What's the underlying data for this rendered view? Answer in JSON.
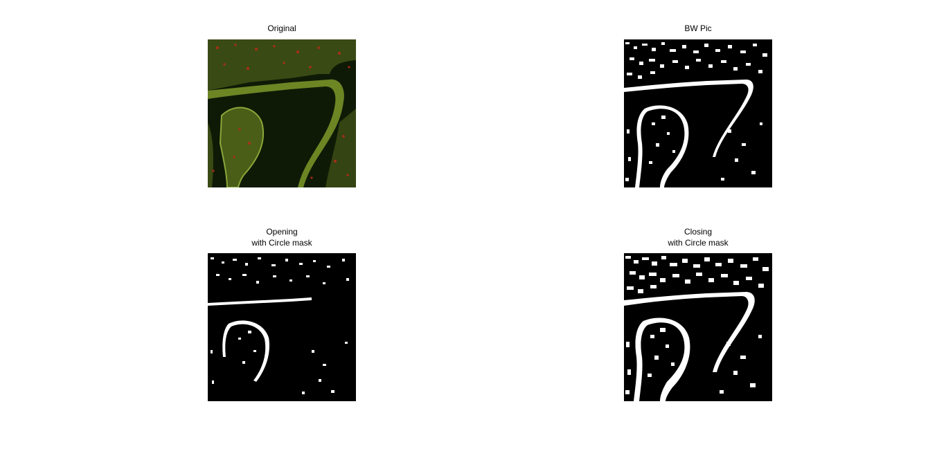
{
  "figure": {
    "background": "#ffffff",
    "panels": [
      {
        "id": "original",
        "title_lines": [
          "Original"
        ],
        "style": "color"
      },
      {
        "id": "bw",
        "title_lines": [
          "BW Pic"
        ],
        "style": "bw"
      },
      {
        "id": "opening",
        "title_lines": [
          "Opening",
          "with Circle mask"
        ],
        "style": "bw-sparse"
      },
      {
        "id": "closing",
        "title_lines": [
          "Closing",
          "with Circle mask"
        ],
        "style": "bw-dense"
      }
    ]
  },
  "colors": {
    "tissue_dark": "#0e1a06",
    "tissue_green": "#7f9a2a",
    "tissue_red": "#c0281a",
    "lumen": "#000000",
    "mask_white": "#ffffff"
  }
}
